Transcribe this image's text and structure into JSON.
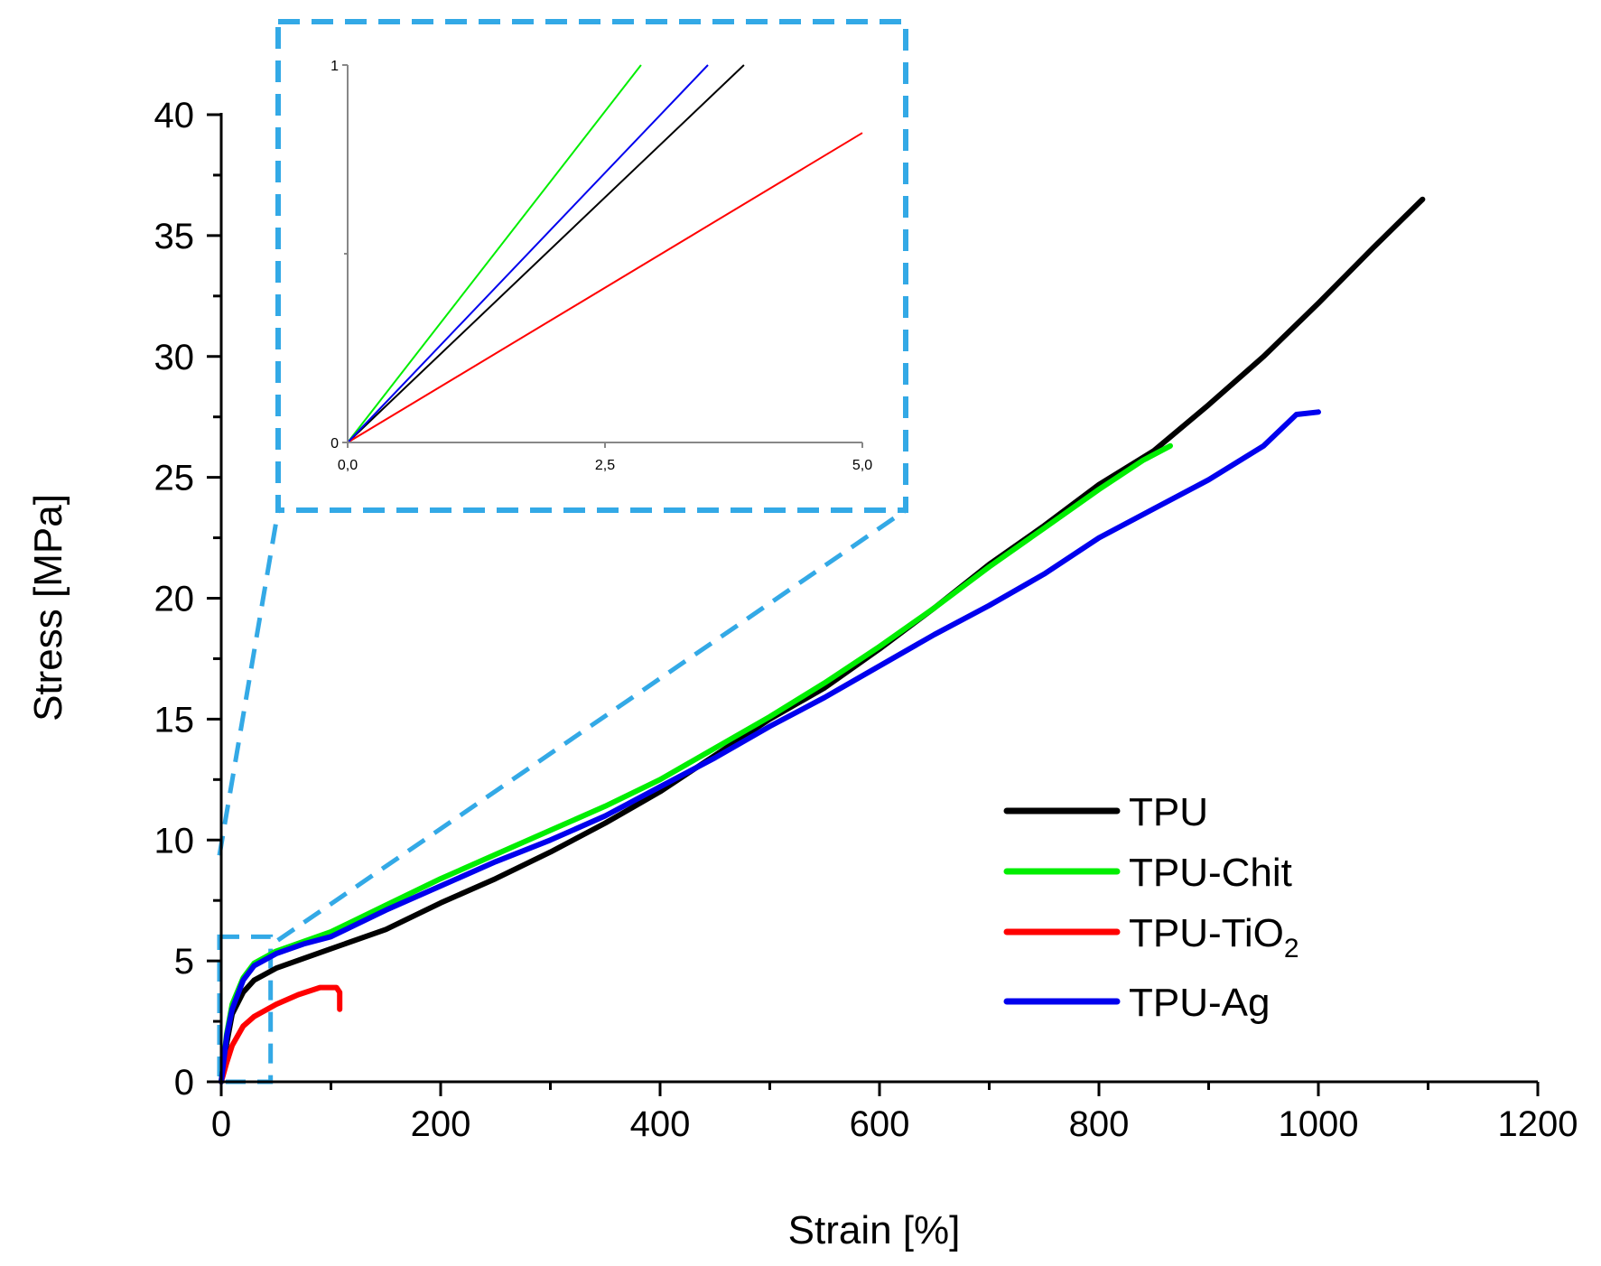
{
  "chart_data": {
    "type": "line",
    "xlabel": "Strain [%]",
    "ylabel": "Stress [MPa]",
    "xlim": [
      0,
      1200
    ],
    "ylim": [
      0,
      40
    ],
    "x_ticks": [
      0,
      200,
      400,
      600,
      800,
      1000,
      1200
    ],
    "x_tick_labels": [
      "0",
      "200",
      "400",
      "600",
      "800",
      "1000",
      "1200"
    ],
    "y_ticks": [
      0,
      5,
      10,
      15,
      20,
      25,
      30,
      35,
      40
    ],
    "y_tick_labels": [
      "0",
      "5",
      "10",
      "15",
      "20",
      "25",
      "30",
      "35",
      "40"
    ],
    "legend_position": "bottom-right",
    "series": [
      {
        "name": "TPU",
        "legend_label": "TPU",
        "legend_subscript": "",
        "color": "#000000",
        "x": [
          0,
          5,
          10,
          20,
          30,
          50,
          75,
          100,
          150,
          200,
          250,
          300,
          350,
          400,
          450,
          500,
          550,
          600,
          650,
          700,
          750,
          800,
          850,
          900,
          950,
          1000,
          1050,
          1095
        ],
        "y": [
          0,
          1.6,
          2.8,
          3.7,
          4.2,
          4.7,
          5.1,
          5.5,
          6.3,
          7.4,
          8.4,
          9.5,
          10.7,
          12.0,
          13.5,
          15.0,
          16.3,
          17.9,
          19.6,
          21.4,
          23.0,
          24.7,
          26.1,
          28.0,
          30.0,
          32.2,
          34.5,
          36.5
        ]
      },
      {
        "name": "TPU-Chit",
        "legend_label": "TPU-Chit",
        "legend_subscript": "",
        "color": "#00ee00",
        "x": [
          0,
          5,
          10,
          20,
          30,
          50,
          75,
          100,
          150,
          200,
          250,
          300,
          350,
          400,
          450,
          500,
          550,
          600,
          650,
          700,
          750,
          800,
          840,
          865
        ],
        "y": [
          0,
          2.0,
          3.2,
          4.3,
          4.9,
          5.4,
          5.8,
          6.2,
          7.3,
          8.4,
          9.4,
          10.4,
          11.4,
          12.5,
          13.8,
          15.1,
          16.5,
          18.0,
          19.6,
          21.3,
          22.9,
          24.5,
          25.7,
          26.3
        ]
      },
      {
        "name": "TPU-TiO2",
        "legend_label": "TPU-TiO",
        "legend_subscript": "2",
        "color": "#ff0000",
        "x": [
          0,
          5,
          10,
          20,
          30,
          50,
          70,
          90,
          100,
          105,
          108,
          108
        ],
        "y": [
          0,
          0.8,
          1.5,
          2.3,
          2.7,
          3.2,
          3.6,
          3.9,
          3.9,
          3.9,
          3.7,
          3.0
        ]
      },
      {
        "name": "TPU-Ag",
        "legend_label": "TPU-Ag",
        "legend_subscript": "",
        "color": "#0000ee",
        "x": [
          0,
          5,
          10,
          20,
          30,
          50,
          75,
          100,
          150,
          200,
          250,
          300,
          350,
          400,
          450,
          500,
          550,
          600,
          650,
          700,
          750,
          800,
          850,
          900,
          950,
          980,
          1000
        ],
        "y": [
          0,
          1.9,
          3.0,
          4.2,
          4.8,
          5.3,
          5.7,
          6.0,
          7.1,
          8.1,
          9.1,
          10.0,
          11.0,
          12.2,
          13.4,
          14.7,
          15.9,
          17.2,
          18.5,
          19.7,
          21.0,
          22.5,
          23.7,
          24.9,
          26.3,
          27.6,
          27.7
        ]
      }
    ],
    "zoom_region": {
      "x": [
        0,
        45
      ],
      "y": [
        0,
        6
      ]
    },
    "inset": {
      "xlim": [
        0,
        5
      ],
      "ylim": [
        0,
        1
      ],
      "x_ticks": [
        0,
        2.5,
        5
      ],
      "x_tick_labels": [
        "0,0",
        "2,5",
        "5,0"
      ],
      "y_ticks": [
        0,
        1
      ],
      "y_tick_labels": [
        "0",
        "1"
      ],
      "series": [
        {
          "name": "TPU",
          "color": "#000000",
          "x": [
            0,
            3.85
          ],
          "y": [
            0,
            1.0
          ]
        },
        {
          "name": "TPU-Chit",
          "color": "#00ee00",
          "x": [
            0,
            2.85
          ],
          "y": [
            0,
            1.0
          ]
        },
        {
          "name": "TPU-TiO2",
          "color": "#ff0000",
          "x": [
            0,
            5.0
          ],
          "y": [
            0,
            0.82
          ]
        },
        {
          "name": "TPU-Ag",
          "color": "#0000ee",
          "x": [
            0,
            3.5
          ],
          "y": [
            0,
            1.0
          ]
        }
      ]
    }
  },
  "colors": {
    "zoom_box": "#33a9e6",
    "axis": "#000000",
    "inset_axis": "#888888"
  }
}
